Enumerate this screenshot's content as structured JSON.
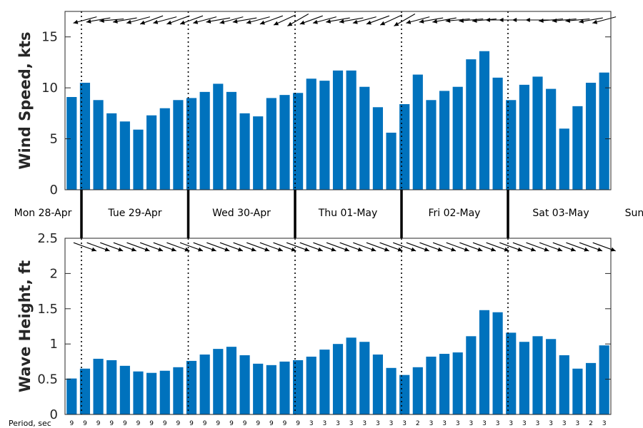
{
  "chart_data": [
    {
      "type": "bar",
      "ylabel": "Wind Speed, kts",
      "ylim": [
        0,
        17.5
      ],
      "yticks": [
        0,
        5,
        10,
        15
      ],
      "color": "#0072BD",
      "values": [
        9.1,
        10.5,
        8.8,
        7.5,
        6.7,
        5.9,
        7.3,
        8.0,
        8.8,
        9.0,
        9.6,
        10.4,
        9.6,
        7.5,
        7.2,
        9.0,
        9.3,
        9.5,
        10.9,
        10.7,
        11.7,
        11.7,
        10.1,
        8.1,
        5.6,
        8.4,
        11.3,
        8.8,
        9.7,
        10.1,
        12.8,
        13.6,
        11.0,
        8.8,
        10.3,
        11.1,
        9.9,
        6.0,
        8.2,
        10.5,
        11.5
      ],
      "direction_deg": [
        null,
        75,
        80,
        85,
        80,
        75,
        70,
        75,
        70,
        70,
        75,
        80,
        75,
        80,
        75,
        70,
        65,
        60,
        70,
        75,
        80,
        80,
        75,
        70,
        65,
        60,
        75,
        80,
        80,
        85,
        85,
        85,
        90,
        90,
        90,
        90,
        85,
        85,
        85,
        80,
        75
      ]
    },
    {
      "type": "bar",
      "ylabel": "Wave Height, ft",
      "ylim": [
        0,
        2.5
      ],
      "yticks": [
        "0",
        "0.5",
        "1",
        "1.5",
        "2",
        "2.5"
      ],
      "color": "#0072BD",
      "values": [
        0.51,
        0.65,
        0.79,
        0.77,
        0.69,
        0.61,
        0.59,
        0.62,
        0.67,
        0.76,
        0.85,
        0.93,
        0.96,
        0.84,
        0.72,
        0.7,
        0.75,
        0.77,
        0.82,
        0.92,
        1.0,
        1.09,
        1.03,
        0.85,
        0.66,
        0.56,
        0.67,
        0.82,
        0.86,
        0.88,
        1.11,
        1.48,
        1.45,
        1.16,
        1.03,
        1.11,
        1.07,
        0.84,
        0.65,
        0.73,
        0.98
      ],
      "direction_deg": [
        null,
        290,
        290,
        290,
        290,
        290,
        290,
        290,
        290,
        290,
        290,
        290,
        290,
        290,
        290,
        290,
        290,
        290,
        290,
        290,
        290,
        290,
        290,
        290,
        290,
        290,
        290,
        290,
        290,
        290,
        290,
        290,
        290,
        290,
        290,
        290,
        290,
        290,
        290,
        290,
        290
      ]
    }
  ],
  "days": [
    "Mon 28-Apr",
    "Tue 29-Apr",
    "Wed 30-Apr",
    "Thu 01-May",
    "Fri 02-May",
    "Sat 03-May",
    "Sun"
  ],
  "period_label": "Period, sec",
  "periods": [
    "9",
    "9",
    "9",
    "9",
    "9",
    "9",
    "9",
    "9",
    "9",
    "9",
    "9",
    "9",
    "9",
    "9",
    "9",
    "9",
    "9",
    "9",
    "3",
    "3",
    "3",
    "3",
    "3",
    "3",
    "3",
    "3",
    "2",
    "3",
    "3",
    "3",
    "3",
    "3",
    "3",
    "3",
    "3",
    "3",
    "3",
    "3",
    "3",
    "2",
    "3"
  ]
}
